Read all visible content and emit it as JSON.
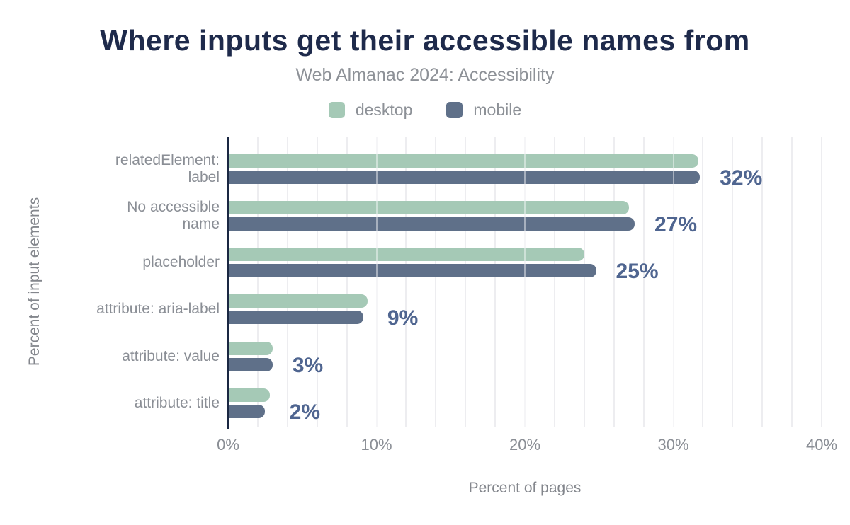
{
  "title": "Where inputs get their accessible names from",
  "subtitle": "Web Almanac 2024: Accessibility",
  "legend": {
    "items": [
      {
        "label": "desktop",
        "color": "#a5c9b6"
      },
      {
        "label": "mobile",
        "color": "#5f7089"
      }
    ]
  },
  "colors": {
    "desktop": "#a5c9b6",
    "mobile": "#5f7089",
    "axis_line": "#1a2742",
    "title": "#1e2a4b",
    "value_label": "#4f6590",
    "gridline": "#ededf0"
  },
  "chart_data": {
    "type": "bar",
    "orientation": "horizontal",
    "title": "Where inputs get their accessible names from",
    "subtitle": "Web Almanac 2024: Accessibility",
    "categories": [
      "relatedElement:\nlabel",
      "No accessible\nname",
      "placeholder",
      "attribute: aria-label",
      "attribute: value",
      "attribute: title"
    ],
    "series": [
      {
        "name": "desktop",
        "values": [
          31.7,
          27.0,
          24.0,
          9.4,
          3.0,
          2.8
        ]
      },
      {
        "name": "mobile",
        "values": [
          31.8,
          27.4,
          24.8,
          9.1,
          3.0,
          2.5
        ]
      }
    ],
    "value_labels": [
      "32%",
      "27%",
      "25%",
      "9%",
      "3%",
      "2%"
    ],
    "xlabel": "Percent of pages",
    "ylabel": "Percent of input elements",
    "xlim": [
      0,
      40
    ],
    "xticks": [
      {
        "value": 0,
        "label": "0%"
      },
      {
        "value": 10,
        "label": "10%"
      },
      {
        "value": 20,
        "label": "20%"
      },
      {
        "value": 30,
        "label": "30%"
      },
      {
        "value": 40,
        "label": "40%"
      }
    ],
    "grid": {
      "minor_step": 2,
      "major_step": 10,
      "minor_on": true
    },
    "legend_position": "top"
  }
}
